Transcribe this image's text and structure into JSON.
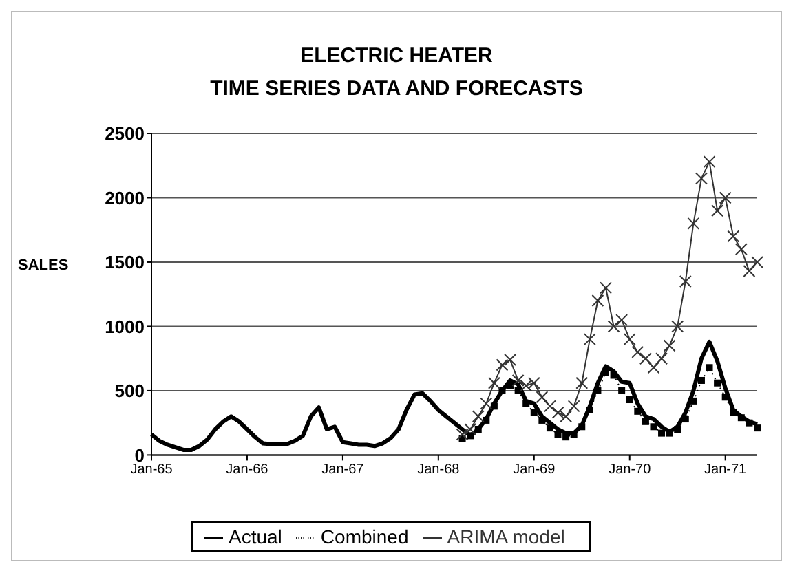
{
  "chart_data": {
    "type": "line",
    "title": "ELECTRIC HEATER",
    "subtitle": "TIME SERIES DATA AND FORECASTS",
    "ylabel": "SALES",
    "categories": [
      "Jan-65",
      null,
      null,
      null,
      null,
      null,
      null,
      null,
      null,
      null,
      null,
      null,
      "Jan-66",
      null,
      null,
      null,
      null,
      null,
      null,
      null,
      null,
      null,
      null,
      null,
      "Jan-67",
      null,
      null,
      null,
      null,
      null,
      null,
      null,
      null,
      null,
      null,
      null,
      "Jan-68",
      null,
      null,
      null,
      null,
      null,
      null,
      null,
      null,
      null,
      null,
      null,
      "Jan-69",
      null,
      null,
      null,
      null,
      null,
      null,
      null,
      null,
      null,
      null,
      null,
      "Jan-70",
      null,
      null,
      null,
      null,
      null,
      null,
      null,
      null,
      null,
      null,
      null,
      "Jan-71",
      null,
      null,
      null,
      null
    ],
    "series": [
      {
        "name": "Actual",
        "color": "#000000",
        "marker": "none",
        "line_style": "solid",
        "values": [
          160,
          110,
          80,
          60,
          40,
          40,
          70,
          120,
          200,
          260,
          300,
          260,
          200,
          140,
          90,
          85,
          85,
          85,
          110,
          150,
          300,
          370,
          200,
          220,
          100,
          90,
          80,
          80,
          70,
          90,
          130,
          200,
          350,
          470,
          480,
          420,
          350,
          300,
          250,
          200,
          150,
          200,
          280,
          400,
          500,
          580,
          550,
          420,
          400,
          300,
          250,
          200,
          170,
          170,
          230,
          380,
          560,
          690,
          650,
          570,
          560,
          400,
          300,
          280,
          220,
          180,
          220,
          330,
          500,
          750,
          880,
          730,
          520,
          350,
          300,
          260,
          240
        ]
      },
      {
        "name": "Combined",
        "color": "#000000",
        "marker": "square",
        "line_style": "dotted",
        "values": [
          null,
          null,
          null,
          null,
          null,
          null,
          null,
          null,
          null,
          null,
          null,
          null,
          null,
          null,
          null,
          null,
          null,
          null,
          null,
          null,
          null,
          null,
          null,
          null,
          null,
          null,
          null,
          null,
          null,
          null,
          null,
          null,
          null,
          null,
          null,
          null,
          null,
          null,
          null,
          130,
          150,
          200,
          270,
          380,
          500,
          540,
          500,
          400,
          330,
          270,
          210,
          160,
          140,
          160,
          220,
          350,
          500,
          640,
          620,
          500,
          430,
          340,
          260,
          220,
          170,
          170,
          200,
          280,
          420,
          580,
          680,
          560,
          450,
          330,
          290,
          250,
          210
        ]
      },
      {
        "name": "ARIMA model",
        "color": "#333333",
        "marker": "cross",
        "line_style": "solid",
        "values": [
          null,
          null,
          null,
          null,
          null,
          null,
          null,
          null,
          null,
          null,
          null,
          null,
          null,
          null,
          null,
          null,
          null,
          null,
          null,
          null,
          null,
          null,
          null,
          null,
          null,
          null,
          null,
          null,
          null,
          null,
          null,
          null,
          null,
          null,
          null,
          null,
          null,
          null,
          null,
          160,
          200,
          300,
          400,
          560,
          700,
          740,
          580,
          540,
          560,
          450,
          380,
          330,
          300,
          380,
          560,
          900,
          1200,
          1300,
          1000,
          1050,
          900,
          800,
          750,
          680,
          750,
          850,
          1000,
          1350,
          1800,
          2150,
          2280,
          1900,
          2000,
          1700,
          1600,
          1430,
          1500
        ]
      }
    ],
    "ylim": [
      0,
      2500
    ],
    "yticks": [
      0,
      500,
      1000,
      1500,
      2000,
      2500
    ],
    "grid": "y",
    "legend": "bottom"
  }
}
